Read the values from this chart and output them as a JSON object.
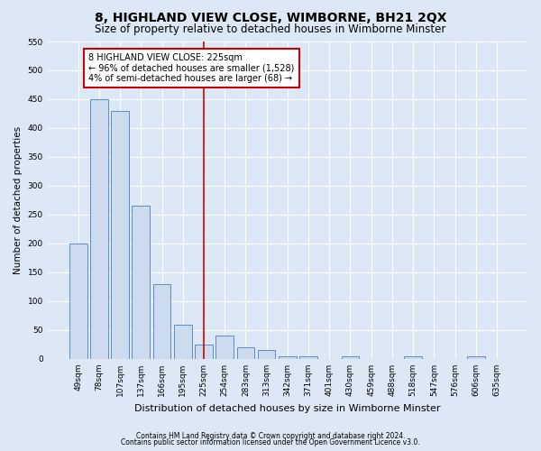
{
  "title": "8, HIGHLAND VIEW CLOSE, WIMBORNE, BH21 2QX",
  "subtitle": "Size of property relative to detached houses in Wimborne Minster",
  "xlabel": "Distribution of detached houses by size in Wimborne Minster",
  "ylabel": "Number of detached properties",
  "categories": [
    "49sqm",
    "78sqm",
    "107sqm",
    "137sqm",
    "166sqm",
    "195sqm",
    "225sqm",
    "254sqm",
    "283sqm",
    "313sqm",
    "342sqm",
    "371sqm",
    "401sqm",
    "430sqm",
    "459sqm",
    "488sqm",
    "518sqm",
    "547sqm",
    "576sqm",
    "606sqm",
    "635sqm"
  ],
  "values": [
    200,
    450,
    430,
    265,
    130,
    60,
    25,
    40,
    20,
    15,
    5,
    5,
    0,
    5,
    0,
    0,
    5,
    0,
    0,
    5,
    0
  ],
  "bar_color": "#ccdcee",
  "bar_edge_color": "#5b8dc8",
  "highlight_index": 6,
  "highlight_color": "#cc0000",
  "ylim": [
    0,
    550
  ],
  "yticks": [
    0,
    50,
    100,
    150,
    200,
    250,
    300,
    350,
    400,
    450,
    500,
    550
  ],
  "annotation_title": "8 HIGHLAND VIEW CLOSE: 225sqm",
  "annotation_line1": "← 96% of detached houses are smaller (1,528)",
  "annotation_line2": "4% of semi-detached houses are larger (68) →",
  "annotation_box_color": "#ffffff",
  "annotation_box_edge_color": "#cc0000",
  "footer_line1": "Contains HM Land Registry data © Crown copyright and database right 2024.",
  "footer_line2": "Contains public sector information licensed under the Open Government Licence v3.0.",
  "background_color": "#dce8f5",
  "grid_color": "#ffffff",
  "title_fontsize": 10,
  "subtitle_fontsize": 8.5,
  "tick_fontsize": 6.5,
  "ylabel_fontsize": 7.5,
  "xlabel_fontsize": 8,
  "annotation_fontsize": 7,
  "footer_fontsize": 5.5
}
